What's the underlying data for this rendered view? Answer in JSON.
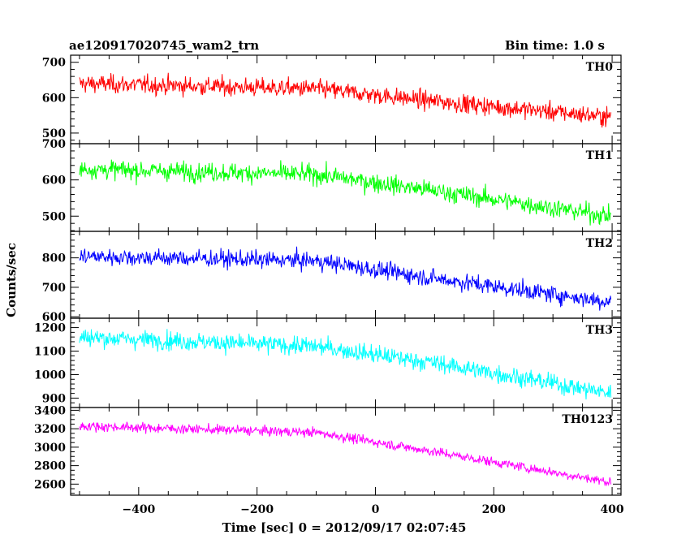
{
  "chart_data": {
    "type": "line",
    "title": "ae120917020745_wam2_trn",
    "subtitle": "Bin time: 1.0 s",
    "xlabel": "Time [sec] 0 = 2012/09/17 02:07:45",
    "ylabel": "Counts/sec",
    "xlim": [
      -515,
      415
    ],
    "x_ticks": [
      -400,
      -200,
      0,
      200,
      400
    ],
    "x_tick_labels": [
      "−400",
      "−200",
      "0",
      "200",
      "400"
    ],
    "panels": [
      {
        "name": "TH0",
        "color": "#ff0000",
        "ylim": [
          470,
          720
        ],
        "y_ticks": [
          500,
          600,
          700
        ],
        "y_minor": 20,
        "x_range": [
          -500,
          398
        ],
        "trend": [
          [
            -500,
            640
          ],
          [
            -100,
            625
          ],
          [
            100,
            590
          ],
          [
            398,
            545
          ]
        ],
        "noise": 40
      },
      {
        "name": "TH1",
        "color": "#00ff00",
        "ylim": [
          458,
          700
        ],
        "y_ticks": [
          500,
          600,
          700
        ],
        "y_minor": 20,
        "x_range": [
          -500,
          398
        ],
        "trend": [
          [
            -500,
            630
          ],
          [
            -100,
            615
          ],
          [
            100,
            570
          ],
          [
            398,
            500
          ]
        ],
        "noise": 40
      },
      {
        "name": "TH2",
        "color": "#0000ff",
        "ylim": [
          595,
          890
        ],
        "y_ticks": [
          600,
          700,
          800
        ],
        "y_minor": 20,
        "x_range": [
          -500,
          398
        ],
        "trend": [
          [
            -500,
            805
          ],
          [
            -100,
            790
          ],
          [
            100,
            730
          ],
          [
            398,
            650
          ]
        ],
        "noise": 45
      },
      {
        "name": "TH3",
        "color": "#00ffff",
        "ylim": [
          860,
          1240
        ],
        "y_ticks": [
          900,
          1000,
          1100,
          1200
        ],
        "y_minor": 20,
        "x_range": [
          -500,
          398
        ],
        "trend": [
          [
            -500,
            1160
          ],
          [
            -100,
            1120
          ],
          [
            100,
            1050
          ],
          [
            398,
            920
          ]
        ],
        "noise": 60
      },
      {
        "name": "TH0123",
        "color": "#ff00ff",
        "ylim": [
          2480,
          3430
        ],
        "y_ticks": [
          2600,
          2800,
          3000,
          3200,
          3400
        ],
        "y_minor": 50,
        "x_range": [
          -500,
          398
        ],
        "trend": [
          [
            -500,
            3230
          ],
          [
            -100,
            3160
          ],
          [
            100,
            2950
          ],
          [
            398,
            2620
          ]
        ],
        "noise": 80
      }
    ]
  }
}
